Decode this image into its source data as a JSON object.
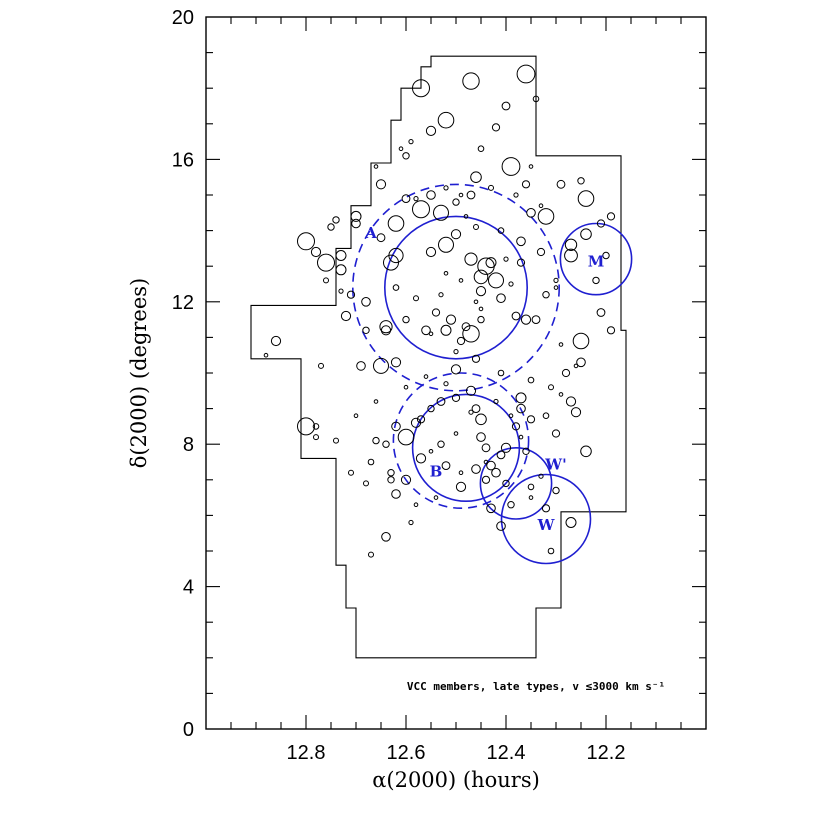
{
  "chart_data": {
    "type": "scatter",
    "title": "",
    "xlabel": "α(2000) (hours)",
    "ylabel": "δ(2000) (degrees)",
    "xlim": [
      12.0,
      13.0
    ],
    "x_reversed": true,
    "ylim": [
      0,
      20
    ],
    "x_ticks": [
      "12.8",
      "12.6",
      "12.4",
      "12.2"
    ],
    "x_tick_values": [
      12.8,
      12.6,
      12.4,
      12.2
    ],
    "y_ticks": [
      "0",
      "4",
      "8",
      "12",
      "16",
      "20"
    ],
    "y_tick_values": [
      0,
      4,
      8,
      12,
      16,
      20
    ],
    "grid": false,
    "annotation": "VCC members, late types, v ≤3000 km s⁻¹",
    "marker_color": "#000000",
    "region_color": "#1f1fd0",
    "survey_boundary": [
      [
        12.55,
        18.9
      ],
      [
        12.34,
        18.9
      ],
      [
        12.34,
        16.1
      ],
      [
        12.17,
        16.1
      ],
      [
        12.17,
        11.2
      ],
      [
        12.16,
        11.2
      ],
      [
        12.16,
        6.1
      ],
      [
        12.29,
        6.1
      ],
      [
        12.29,
        3.4
      ],
      [
        12.34,
        3.4
      ],
      [
        12.34,
        2.0
      ],
      [
        12.7,
        2.0
      ],
      [
        12.7,
        3.4
      ],
      [
        12.72,
        3.4
      ],
      [
        12.72,
        4.6
      ],
      [
        12.74,
        4.6
      ],
      [
        12.74,
        7.6
      ],
      [
        12.81,
        7.6
      ],
      [
        12.81,
        10.4
      ],
      [
        12.91,
        10.4
      ],
      [
        12.91,
        11.9
      ],
      [
        12.74,
        11.9
      ],
      [
        12.74,
        13.5
      ],
      [
        12.71,
        13.5
      ],
      [
        12.71,
        14.7
      ],
      [
        12.67,
        14.7
      ],
      [
        12.67,
        15.9
      ],
      [
        12.63,
        15.9
      ],
      [
        12.63,
        17.1
      ],
      [
        12.61,
        17.1
      ],
      [
        12.61,
        18.0
      ],
      [
        12.57,
        18.0
      ],
      [
        12.57,
        18.6
      ],
      [
        12.55,
        18.6
      ]
    ],
    "regions": [
      {
        "label": "A",
        "center": [
          12.5,
          12.4
        ],
        "radius_deg": 2.0,
        "dashed": false,
        "label_pos": [
          12.67,
          13.9
        ]
      },
      {
        "label": "",
        "center": [
          12.5,
          12.4
        ],
        "radius_deg": 2.9,
        "dashed": true
      },
      {
        "label": "B",
        "center": [
          12.48,
          7.9
        ],
        "radius_deg": 1.5,
        "dashed": false,
        "label_pos": [
          12.54,
          7.2
        ]
      },
      {
        "label": "",
        "center": [
          12.49,
          8.1
        ],
        "radius_deg": 1.9,
        "dashed": true
      },
      {
        "label": "W'",
        "center": [
          12.38,
          6.9
        ],
        "radius_deg": 1.0,
        "dashed": false,
        "label_pos": [
          12.3,
          7.4
        ]
      },
      {
        "label": "W",
        "center": [
          12.32,
          5.9
        ],
        "radius_deg": 1.25,
        "dashed": false,
        "label_pos": [
          12.32,
          5.7
        ]
      },
      {
        "label": "M",
        "center": [
          12.22,
          13.2
        ],
        "radius_deg": 1.0,
        "dashed": false,
        "label_pos": [
          12.22,
          13.1
        ]
      }
    ],
    "series": [
      {
        "points": [
          [
            12.57,
            18.0,
            0.24
          ],
          [
            12.47,
            18.2,
            0.23
          ],
          [
            12.36,
            18.4,
            0.25
          ],
          [
            12.4,
            17.5,
            0.11
          ],
          [
            12.34,
            17.7,
            0.08
          ],
          [
            12.52,
            17.1,
            0.22
          ],
          [
            12.55,
            16.8,
            0.13
          ],
          [
            12.59,
            16.5,
            0.06
          ],
          [
            12.42,
            16.9,
            0.1
          ],
          [
            12.45,
            16.3,
            0.08
          ],
          [
            12.6,
            16.1,
            0.09
          ],
          [
            12.66,
            15.8,
            0.05
          ],
          [
            12.39,
            15.8,
            0.25
          ],
          [
            12.46,
            15.5,
            0.15
          ],
          [
            12.43,
            15.2,
            0.07
          ],
          [
            12.36,
            15.3,
            0.1
          ],
          [
            12.65,
            15.3,
            0.13
          ],
          [
            12.6,
            14.9,
            0.11
          ],
          [
            12.55,
            15.0,
            0.12
          ],
          [
            12.5,
            14.8,
            0.09
          ],
          [
            12.47,
            15.0,
            0.11
          ],
          [
            12.53,
            14.5,
            0.21
          ],
          [
            12.57,
            14.6,
            0.24
          ],
          [
            12.62,
            14.2,
            0.22
          ],
          [
            12.7,
            14.4,
            0.14
          ],
          [
            12.7,
            14.2,
            0.12
          ],
          [
            12.65,
            13.8,
            0.11
          ],
          [
            12.78,
            13.4,
            0.13
          ],
          [
            12.8,
            13.7,
            0.24
          ],
          [
            12.73,
            13.3,
            0.14
          ],
          [
            12.76,
            13.1,
            0.24
          ],
          [
            12.73,
            12.9,
            0.14
          ],
          [
            12.62,
            13.3,
            0.2
          ],
          [
            12.63,
            13.1,
            0.21
          ],
          [
            12.55,
            13.4,
            0.13
          ],
          [
            12.52,
            13.6,
            0.21
          ],
          [
            12.5,
            13.9,
            0.13
          ],
          [
            12.47,
            13.2,
            0.17
          ],
          [
            12.44,
            13.0,
            0.23
          ],
          [
            12.45,
            12.7,
            0.19
          ],
          [
            12.42,
            12.6,
            0.21
          ],
          [
            12.43,
            13.1,
            0.14
          ],
          [
            12.45,
            12.3,
            0.13
          ],
          [
            12.41,
            12.1,
            0.12
          ],
          [
            12.38,
            11.6,
            0.11
          ],
          [
            12.48,
            11.3,
            0.11
          ],
          [
            12.51,
            11.5,
            0.13
          ],
          [
            12.52,
            11.2,
            0.14
          ],
          [
            12.54,
            11.7,
            0.1
          ],
          [
            12.56,
            11.2,
            0.12
          ],
          [
            12.6,
            11.5,
            0.09
          ],
          [
            12.64,
            11.3,
            0.17
          ],
          [
            12.64,
            11.2,
            0.13
          ],
          [
            12.68,
            11.2,
            0.09
          ],
          [
            12.72,
            11.6,
            0.13
          ],
          [
            12.71,
            12.2,
            0.1
          ],
          [
            12.68,
            12.0,
            0.12
          ],
          [
            12.62,
            12.4,
            0.08
          ],
          [
            12.58,
            12.1,
            0.07
          ],
          [
            12.47,
            11.1,
            0.23
          ],
          [
            12.46,
            10.4,
            0.1
          ],
          [
            12.49,
            10.9,
            0.1
          ],
          [
            12.45,
            11.5,
            0.09
          ],
          [
            12.41,
            10.0,
            0.08
          ],
          [
            12.5,
            10.1,
            0.13
          ],
          [
            12.62,
            10.3,
            0.13
          ],
          [
            12.65,
            10.2,
            0.21
          ],
          [
            12.69,
            10.2,
            0.12
          ],
          [
            12.77,
            10.2,
            0.07
          ],
          [
            12.86,
            10.9,
            0.13
          ],
          [
            12.88,
            10.5,
            0.05
          ],
          [
            12.36,
            11.5,
            0.13
          ],
          [
            12.34,
            11.5,
            0.11
          ],
          [
            12.32,
            12.2,
            0.09
          ],
          [
            12.37,
            13.1,
            0.1
          ],
          [
            12.37,
            13.7,
            0.12
          ],
          [
            12.35,
            14.5,
            0.12
          ],
          [
            12.33,
            13.4,
            0.1
          ],
          [
            12.32,
            14.4,
            0.22
          ],
          [
            12.29,
            15.3,
            0.11
          ],
          [
            12.25,
            15.4,
            0.09
          ],
          [
            12.24,
            14.9,
            0.22
          ],
          [
            12.24,
            13.9,
            0.15
          ],
          [
            12.27,
            13.6,
            0.16
          ],
          [
            12.27,
            13.3,
            0.18
          ],
          [
            12.21,
            14.2,
            0.1
          ],
          [
            12.19,
            14.4,
            0.1
          ],
          [
            12.2,
            13.3,
            0.09
          ],
          [
            12.22,
            12.6,
            0.09
          ],
          [
            12.21,
            11.7,
            0.11
          ],
          [
            12.25,
            10.9,
            0.22
          ],
          [
            12.19,
            11.2,
            0.1
          ],
          [
            12.25,
            10.3,
            0.12
          ],
          [
            12.28,
            10.0,
            0.1
          ],
          [
            12.31,
            9.6,
            0.07
          ],
          [
            12.35,
            9.8,
            0.08
          ],
          [
            12.27,
            9.2,
            0.13
          ],
          [
            12.26,
            8.9,
            0.13
          ],
          [
            12.24,
            7.8,
            0.15
          ],
          [
            12.3,
            8.3,
            0.1
          ],
          [
            12.32,
            8.8,
            0.08
          ],
          [
            12.35,
            8.7,
            0.1
          ],
          [
            12.37,
            9.3,
            0.14
          ],
          [
            12.37,
            9.0,
            0.12
          ],
          [
            12.38,
            8.5,
            0.1
          ],
          [
            12.4,
            7.9,
            0.13
          ],
          [
            12.41,
            7.7,
            0.11
          ],
          [
            12.43,
            7.4,
            0.12
          ],
          [
            12.44,
            7.9,
            0.11
          ],
          [
            12.45,
            8.2,
            0.12
          ],
          [
            12.45,
            8.7,
            0.15
          ],
          [
            12.46,
            9.0,
            0.11
          ],
          [
            12.47,
            9.5,
            0.13
          ],
          [
            12.5,
            9.3,
            0.1
          ],
          [
            12.53,
            9.2,
            0.11
          ],
          [
            12.55,
            9.0,
            0.09
          ],
          [
            12.57,
            8.7,
            0.1
          ],
          [
            12.58,
            8.6,
            0.13
          ],
          [
            12.6,
            8.2,
            0.22
          ],
          [
            12.62,
            8.5,
            0.12
          ],
          [
            12.64,
            8.0,
            0.09
          ],
          [
            12.66,
            8.1,
            0.09
          ],
          [
            12.67,
            7.5,
            0.08
          ],
          [
            12.63,
            7.2,
            0.09
          ],
          [
            12.6,
            7.0,
            0.13
          ],
          [
            12.57,
            7.6,
            0.13
          ],
          [
            12.53,
            8.0,
            0.09
          ],
          [
            12.52,
            7.4,
            0.11
          ],
          [
            12.49,
            6.8,
            0.13
          ],
          [
            12.46,
            7.3,
            0.12
          ],
          [
            12.44,
            7.0,
            0.1
          ],
          [
            12.42,
            7.2,
            0.12
          ],
          [
            12.4,
            6.9,
            0.09
          ],
          [
            12.43,
            6.2,
            0.12
          ],
          [
            12.41,
            5.7,
            0.12
          ],
          [
            12.39,
            6.3,
            0.09
          ],
          [
            12.35,
            6.8,
            0.08
          ],
          [
            12.32,
            6.2,
            0.1
          ],
          [
            12.3,
            6.7,
            0.09
          ],
          [
            12.27,
            5.8,
            0.14
          ],
          [
            12.31,
            5.0,
            0.08
          ],
          [
            12.62,
            6.6,
            0.12
          ],
          [
            12.63,
            7.0,
            0.09
          ],
          [
            12.68,
            6.9,
            0.07
          ],
          [
            12.64,
            5.4,
            0.12
          ],
          [
            12.67,
            4.9,
            0.07
          ],
          [
            12.71,
            7.2,
            0.07
          ],
          [
            12.74,
            8.1,
            0.07
          ],
          [
            12.78,
            8.2,
            0.07
          ],
          [
            12.8,
            8.5,
            0.24
          ],
          [
            12.78,
            8.5,
            0.08
          ],
          [
            12.59,
            5.8,
            0.06
          ],
          [
            12.73,
            12.3,
            0.06
          ],
          [
            12.76,
            12.6,
            0.07
          ],
          [
            12.75,
            14.1,
            0.09
          ],
          [
            12.74,
            14.3,
            0.09
          ],
          [
            12.61,
            16.3,
            0.05
          ],
          [
            12.52,
            15.2,
            0.06
          ],
          [
            12.46,
            14.1,
            0.07
          ],
          [
            12.41,
            14.0,
            0.08
          ],
          [
            12.4,
            13.2,
            0.06
          ],
          [
            12.39,
            12.5,
            0.06
          ],
          [
            12.46,
            12.0,
            0.05
          ],
          [
            12.49,
            12.6,
            0.05
          ],
          [
            12.53,
            12.2,
            0.06
          ],
          [
            12.52,
            12.8,
            0.05
          ],
          [
            12.55,
            11.1,
            0.05
          ],
          [
            12.5,
            10.6,
            0.06
          ],
          [
            12.45,
            11.8,
            0.05
          ],
          [
            12.48,
            14.4,
            0.05
          ],
          [
            12.58,
            14.9,
            0.06
          ],
          [
            12.49,
            15.0,
            0.05
          ],
          [
            12.38,
            15.0,
            0.06
          ],
          [
            12.35,
            15.8,
            0.05
          ],
          [
            12.33,
            14.7,
            0.05
          ],
          [
            12.3,
            12.6,
            0.06
          ],
          [
            12.29,
            10.8,
            0.05
          ],
          [
            12.3,
            12.4,
            0.05
          ],
          [
            12.56,
            9.9,
            0.05
          ],
          [
            12.52,
            9.7,
            0.06
          ],
          [
            12.42,
            9.2,
            0.06
          ],
          [
            12.39,
            8.8,
            0.05
          ],
          [
            12.47,
            8.9,
            0.06
          ],
          [
            12.5,
            8.3,
            0.05
          ],
          [
            12.55,
            7.8,
            0.05
          ],
          [
            12.36,
            7.8,
            0.09
          ],
          [
            12.37,
            8.2,
            0.05
          ],
          [
            12.44,
            7.5,
            0.05
          ],
          [
            12.49,
            7.2,
            0.05
          ],
          [
            12.54,
            6.5,
            0.05
          ],
          [
            12.58,
            6.3,
            0.05
          ],
          [
            12.6,
            9.6,
            0.05
          ],
          [
            12.66,
            9.2,
            0.05
          ],
          [
            12.7,
            8.8,
            0.05
          ],
          [
            12.35,
            6.5,
            0.05
          ],
          [
            12.33,
            7.1,
            0.06
          ],
          [
            12.29,
            9.4,
            0.05
          ],
          [
            12.26,
            10.2,
            0.05
          ]
        ]
      }
    ]
  }
}
